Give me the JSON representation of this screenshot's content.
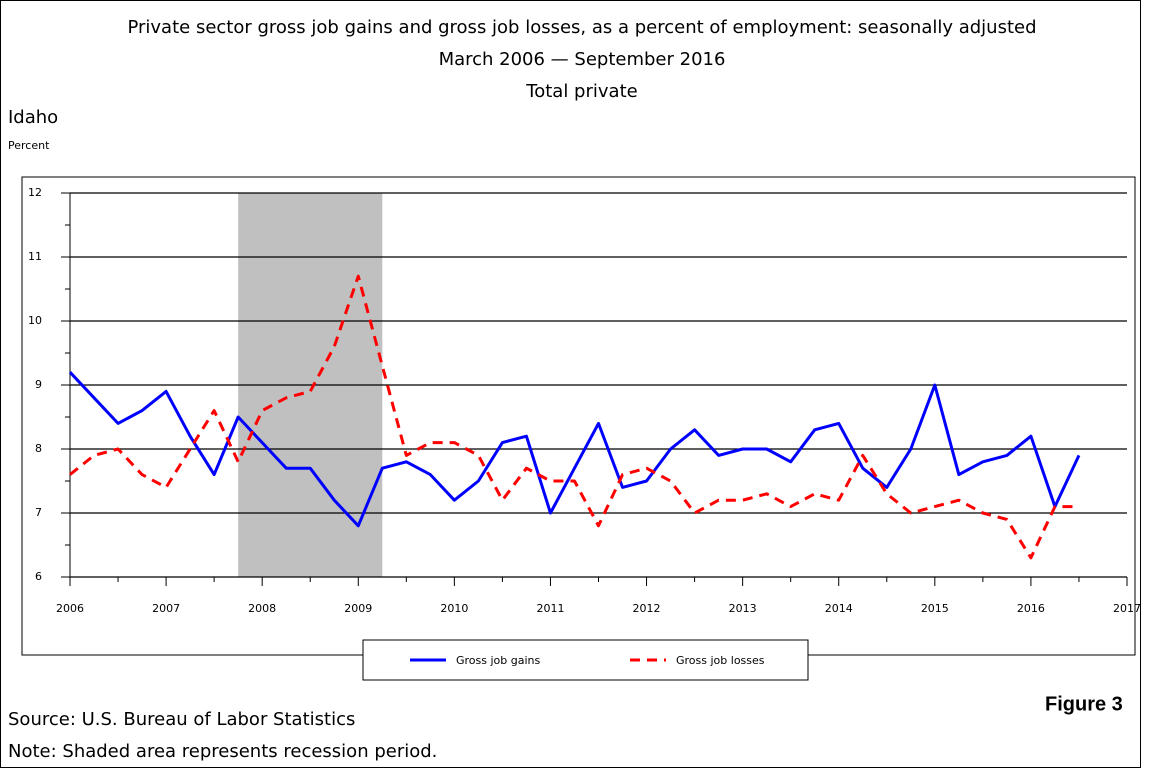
{
  "chart_data": {
    "type": "line",
    "title": "Private sector gross job gains and gross job losses, as a percent of employment: seasonally adjusted",
    "subtitle": "March 2006 — September 2016",
    "subtitle2": "Total private",
    "region": "Idaho",
    "y_label": "Percent",
    "x": [
      2006,
      2006.25,
      2006.5,
      2006.75,
      2007,
      2007.25,
      2007.5,
      2007.75,
      2008,
      2008.25,
      2008.5,
      2008.75,
      2009,
      2009.25,
      2009.5,
      2009.75,
      2010,
      2010.25,
      2010.5,
      2010.75,
      2011,
      2011.25,
      2011.5,
      2011.75,
      2012,
      2012.25,
      2012.5,
      2012.75,
      2013,
      2013.25,
      2013.5,
      2013.75,
      2014,
      2014.25,
      2014.5,
      2014.75,
      2015,
      2015.25,
      2015.5,
      2015.75,
      2016,
      2016.25,
      2016.5
    ],
    "series": [
      {
        "name": "Gross job gains",
        "color": "#0000ff",
        "dash": false,
        "values": [
          9.2,
          8.8,
          8.4,
          8.6,
          8.9,
          8.2,
          7.6,
          8.5,
          8.1,
          7.7,
          7.7,
          7.2,
          6.8,
          7.7,
          7.8,
          7.6,
          7.2,
          7.5,
          8.1,
          8.2,
          7.0,
          7.7,
          8.4,
          7.4,
          7.5,
          8.0,
          8.3,
          7.9,
          8.0,
          8.0,
          7.8,
          8.3,
          8.4,
          7.7,
          7.4,
          8.0,
          9.0,
          7.6,
          7.8,
          7.9,
          8.2,
          7.1,
          7.9
        ]
      },
      {
        "name": "Gross job losses",
        "color": "#ff0000",
        "dash": true,
        "values": [
          7.6,
          7.9,
          8.0,
          7.6,
          7.4,
          8.0,
          8.6,
          7.8,
          8.6,
          8.8,
          8.9,
          9.6,
          10.7,
          9.3,
          7.9,
          8.1,
          8.1,
          7.9,
          7.2,
          7.7,
          7.5,
          7.5,
          6.8,
          7.6,
          7.7,
          7.5,
          7.0,
          7.2,
          7.2,
          7.3,
          7.1,
          7.3,
          7.2,
          7.9,
          7.3,
          7.0,
          7.1,
          7.2,
          7.0,
          6.9,
          6.3,
          7.1,
          7.1
        ]
      }
    ],
    "recession": [
      2007.75,
      2009.25
    ],
    "recession_color": "#c0c0c0",
    "xlim": [
      2006,
      2017
    ],
    "xticks": [
      2006,
      2007,
      2008,
      2009,
      2010,
      2011,
      2012,
      2013,
      2014,
      2015,
      2016,
      2017
    ],
    "xminorticks": [
      2006.5,
      2007.5,
      2008.5,
      2009.5,
      2010.5,
      2011.5,
      2012.5,
      2013.5,
      2014.5,
      2015.5,
      2016.5
    ],
    "ylim": [
      6,
      12
    ],
    "yticks": [
      6,
      7,
      8,
      9,
      10,
      11,
      12
    ],
    "yminorticks": [
      6.5,
      7.5,
      8.5,
      9.5,
      10.5,
      11.5
    ],
    "grid": true,
    "source": "Source: U.S. Bureau of Labor Statistics",
    "note": "Note: Shaded area represents recession period.",
    "figure_label": "Figure 3"
  }
}
